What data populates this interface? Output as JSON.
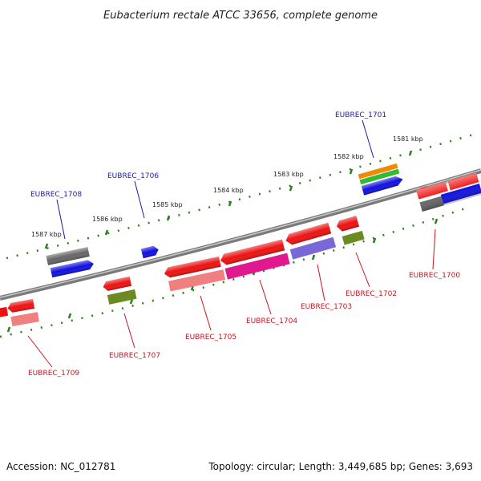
{
  "title": "Eubacterium rectale ATCC 33656, complete genome",
  "footer": {
    "accession": "Accession: NC_012781",
    "summary": "Topology: circular; Length: 3,449,685 bp; Genes: 3,693"
  },
  "scale_labels": [
    "1581 kbp",
    "1582 kbp",
    "1583 kbp",
    "1584 kbp",
    "1585 kbp",
    "1586 kbp",
    "1587 kbp"
  ],
  "genes_top": [
    "EUBREC_1701",
    "EUBREC_1706",
    "EUBREC_1708"
  ],
  "genes_bottom": [
    "EUBREC_1700",
    "EUBREC_1702",
    "EUBREC_1703",
    "EUBREC_1704",
    "EUBREC_1705",
    "EUBREC_1707",
    "EUBREC_1709"
  ],
  "colors": {
    "backbone": "#808080",
    "scale_tick": "#2e7d1e",
    "cds": "#ee1111",
    "gray": "#666666",
    "blue": "#1010e0",
    "orange": "#f08a00",
    "green": "#33bb33",
    "salmon": "#f07f7f",
    "magenta": "#e0198f",
    "lavender": "#7b68d8",
    "olive": "#6b8a22",
    "label_top": "#1a1aa6",
    "label_bottom": "#c8141e"
  }
}
